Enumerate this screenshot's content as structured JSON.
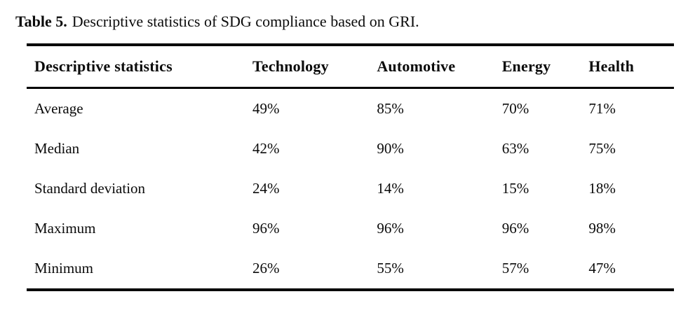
{
  "caption": {
    "label": "Table 5.",
    "text": "Descriptive statistics of SDG compliance based on GRI."
  },
  "table": {
    "headers": [
      "Descriptive statistics",
      "Technology",
      "Automotive",
      "Energy",
      "Health"
    ],
    "rows": [
      {
        "label": "Average",
        "values": [
          "49%",
          "85%",
          "70%",
          "71%"
        ]
      },
      {
        "label": "Median",
        "values": [
          "42%",
          "90%",
          "63%",
          "75%"
        ]
      },
      {
        "label": "Standard deviation",
        "values": [
          "24%",
          "14%",
          "15%",
          "18%"
        ]
      },
      {
        "label": "Maximum",
        "values": [
          "96%",
          "96%",
          "96%",
          "98%"
        ]
      },
      {
        "label": "Minimum",
        "values": [
          "26%",
          "55%",
          "57%",
          "47%"
        ]
      }
    ]
  },
  "colors": {
    "background": "#ffffff",
    "text": "#0b0b0b",
    "rule": "#000000"
  },
  "chart_data": {
    "type": "table",
    "title": "Table 5. Descriptive statistics of SDG compliance based on GRI.",
    "columns": [
      "Descriptive statistics",
      "Technology",
      "Automotive",
      "Energy",
      "Health"
    ],
    "rows": [
      [
        "Average",
        "49%",
        "85%",
        "70%",
        "71%"
      ],
      [
        "Median",
        "42%",
        "90%",
        "63%",
        "75%"
      ],
      [
        "Standard deviation",
        "24%",
        "14%",
        "15%",
        "18%"
      ],
      [
        "Maximum",
        "96%",
        "96%",
        "96%",
        "98%"
      ],
      [
        "Minimum",
        "26%",
        "55%",
        "57%",
        "47%"
      ]
    ]
  }
}
